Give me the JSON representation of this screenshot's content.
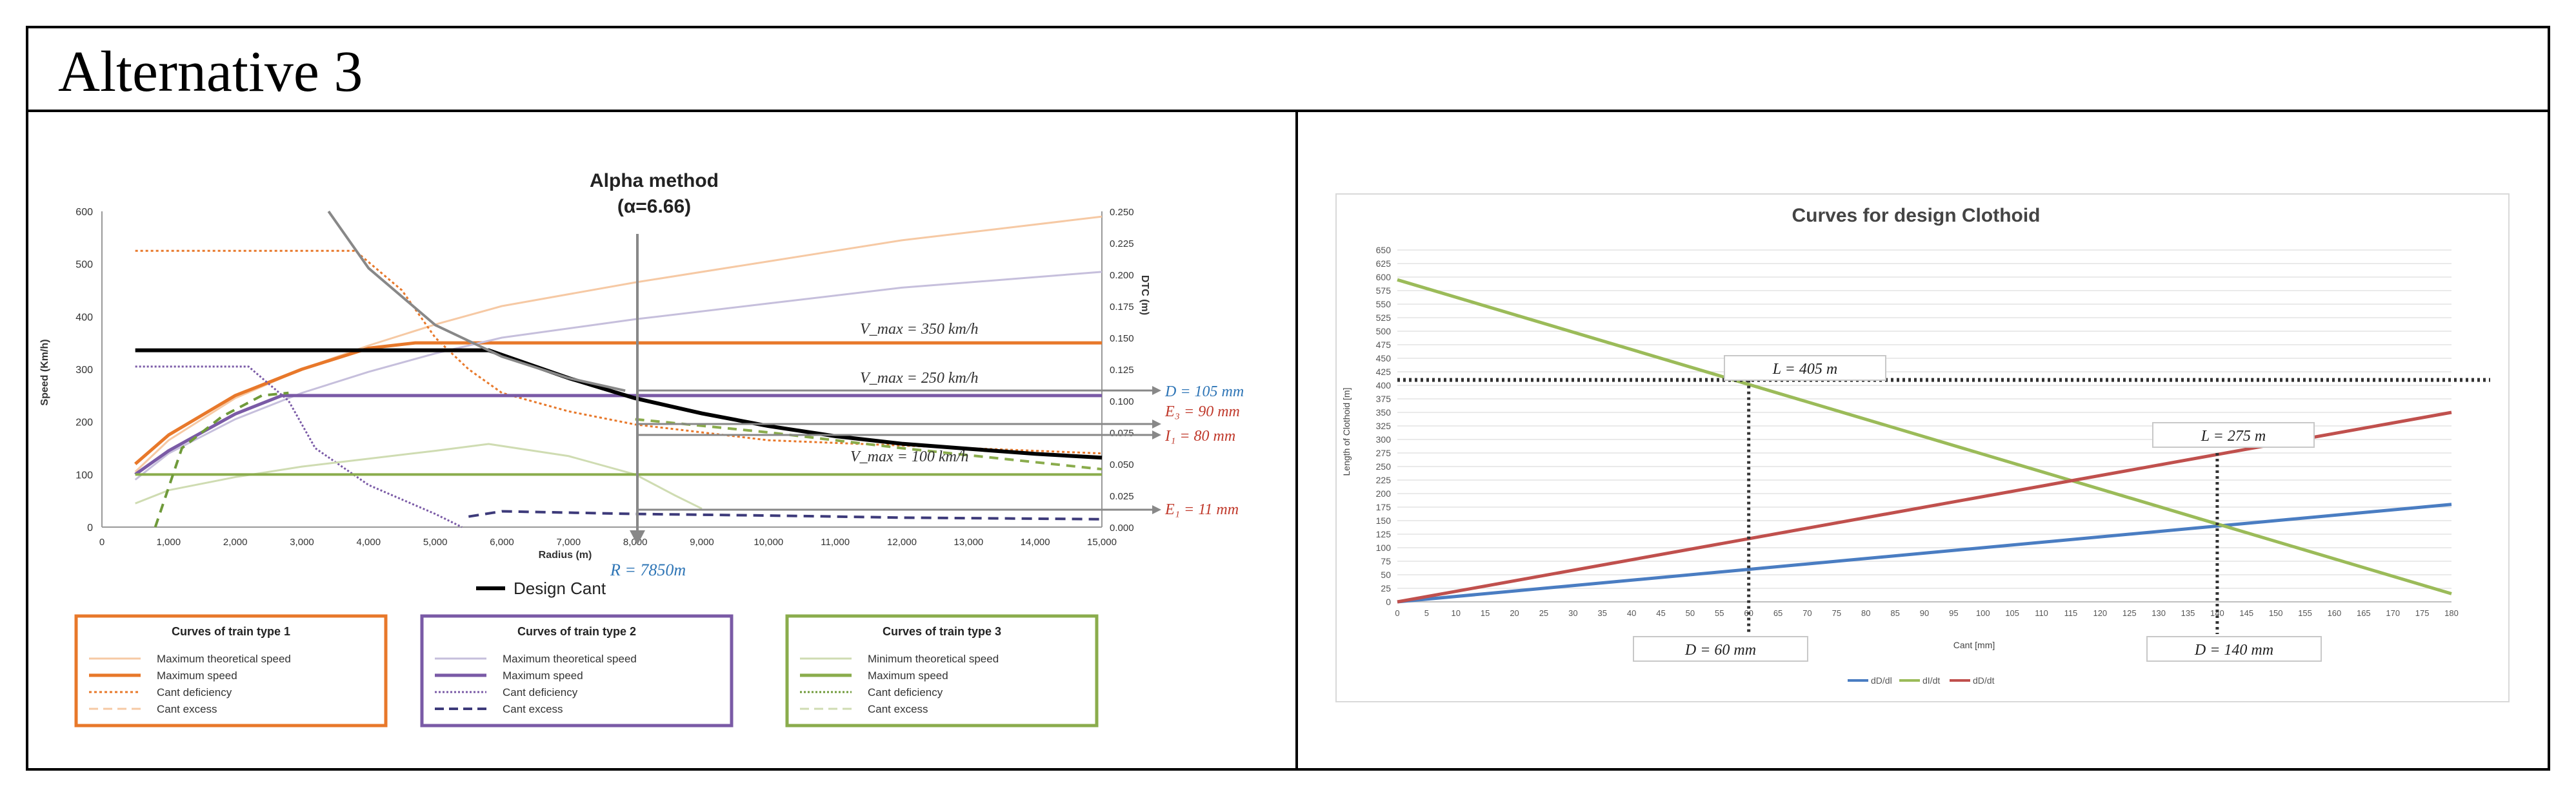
{
  "header": {
    "title": "Alternative 3"
  },
  "left_chart": {
    "title_line1": "Alpha method",
    "title_line2": "(α=6.66)",
    "xlabel": "Radius (m)",
    "ylabel_left": "Speed (Km/h)",
    "ylabel_right": "DTC (m)",
    "design_cant_label": "Design Cant",
    "radius_label": "R = 7850m",
    "annotations": {
      "vmax1": "V_max = 350 km/h",
      "vmax2": "V_max = 250 km/h",
      "vmax3": "V_max = 100 km/h",
      "D": "D = 105 mm",
      "E3": "E₃ = 90 mm",
      "I1": "I₁ = 80 mm",
      "E1": "E₁ = 11 mm"
    },
    "legend_boxes": [
      {
        "title": "Curves of train type 1",
        "items": [
          "Maximum theoretical speed",
          "Maximum speed",
          "Cant deficiency",
          "Cant excess"
        ],
        "color": "#e8782a"
      },
      {
        "title": "Curves of train type 2",
        "items": [
          "Maximum theoretical speed",
          "Maximum speed",
          "Cant deficiency",
          "Cant excess"
        ],
        "color": "#7a5aa6"
      },
      {
        "title": "Curves of  train type 3",
        "items": [
          "Minimum theoretical speed",
          "Maximum speed",
          "Cant deficiency",
          "Cant excess"
        ],
        "color": "#8aac4c"
      }
    ]
  },
  "right_chart": {
    "title": "Curves for design Clothoid",
    "ylabel": "Length of Clothoid [m]",
    "xlabel": "Cant [mm]",
    "annotations": {
      "L1": "L = 405 m",
      "L2": "L = 275 m",
      "D1": "D = 60 mm",
      "D2": "D = 140 mm"
    },
    "legend": [
      "dD/dl",
      "dI/dt",
      "dD/dt"
    ]
  },
  "chart_data": [
    {
      "type": "line",
      "title": "Alpha method (α=6.66)",
      "xlabel": "Radius (m)",
      "ylabel": "Speed (Km/h)",
      "y2label": "DTC (m)",
      "xlim": [
        0,
        15000
      ],
      "ylim": [
        0,
        600
      ],
      "y2lim": [
        0,
        0.25
      ],
      "xticks": [
        0,
        1000,
        2000,
        3000,
        4000,
        5000,
        6000,
        7000,
        8000,
        9000,
        10000,
        11000,
        12000,
        13000,
        14000,
        15000
      ],
      "xtick_labels": [
        "0",
        "1,000",
        "2,000",
        "3,000",
        "4,000",
        "5,000",
        "6,000",
        "7,000",
        "8,000",
        "9,000",
        "10,000",
        "11,000",
        "12,000",
        "13,000",
        "14,000",
        "15,000"
      ],
      "yticks": [
        0,
        100,
        200,
        300,
        400,
        500,
        600
      ],
      "y2ticks": [
        0,
        0.025,
        0.05,
        0.075,
        0.1,
        0.125,
        0.15,
        0.175,
        0.2,
        0.225,
        0.25
      ],
      "y2tick_labels": [
        "0.000",
        "0.025",
        "0.050",
        "0.075",
        "0.100",
        "0.125",
        "0.150",
        "0.175",
        "0.200",
        "0.225",
        "0.250"
      ],
      "series": [
        {
          "name": "Train 1 maximum theoretical speed",
          "axis": "y",
          "color": "#f6c9a4",
          "width": 3,
          "dash": "",
          "x": [
            500,
            1000,
            2000,
            3000,
            4000,
            5000,
            6000,
            8000,
            10000,
            12000,
            15000
          ],
          "y": [
            105,
            165,
            245,
            300,
            345,
            385,
            420,
            465,
            505,
            545,
            590
          ]
        },
        {
          "name": "Train 1 maximum speed",
          "axis": "y",
          "color": "#e8782a",
          "width": 5,
          "dash": "",
          "x": [
            500,
            1000,
            2000,
            3000,
            4000,
            4700,
            15000
          ],
          "y": [
            120,
            175,
            250,
            300,
            340,
            350,
            350
          ]
        },
        {
          "name": "Train 1 cant deficiency",
          "axis": "y",
          "color": "#e8782a",
          "width": 3,
          "dash": "4,4",
          "x": [
            500,
            3800,
            4500,
            5000,
            5500,
            6000,
            7000,
            8000,
            9000,
            10000,
            15000
          ],
          "y": [
            525,
            525,
            450,
            360,
            300,
            255,
            220,
            195,
            180,
            165,
            140
          ]
        },
        {
          "name": "Train 2 maximum theoretical speed",
          "axis": "y",
          "color": "#c6bfdc",
          "width": 3,
          "dash": "",
          "x": [
            500,
            1000,
            2000,
            3000,
            4000,
            5000,
            6000,
            8000,
            10000,
            12000,
            15000
          ],
          "y": [
            90,
            140,
            205,
            255,
            295,
            330,
            360,
            395,
            425,
            455,
            485
          ]
        },
        {
          "name": "Train 2 maximum speed",
          "axis": "y",
          "color": "#7a5aa6",
          "width": 5,
          "dash": "",
          "x": [
            500,
            1000,
            2000,
            2700,
            15000
          ],
          "y": [
            100,
            145,
            215,
            250,
            250
          ]
        },
        {
          "name": "Train 2 cant deficiency",
          "axis": "y",
          "color": "#7a5aa6",
          "width": 3,
          "dash": "3,3",
          "x": [
            500,
            2200,
            2800,
            3200,
            4000,
            5000,
            5400
          ],
          "y": [
            305,
            305,
            240,
            150,
            80,
            25,
            0
          ]
        },
        {
          "name": "Train 2 cant excess",
          "axis": "y",
          "color": "#3d3a7a",
          "width": 4,
          "dash": "16,10",
          "x": [
            5500,
            6000,
            8000,
            10000,
            12000,
            15000
          ],
          "y": [
            20,
            30,
            25,
            22,
            18,
            15
          ]
        },
        {
          "name": "Train 3 minimum theoretical speed",
          "axis": "y",
          "color": "#cfdcb2",
          "width": 3,
          "dash": "",
          "x": [
            500,
            1000,
            2000,
            3000,
            4000,
            5000,
            5800,
            7000,
            8000,
            8600,
            9000
          ],
          "y": [
            45,
            70,
            95,
            115,
            130,
            145,
            158,
            135,
            100,
            60,
            35
          ]
        },
        {
          "name": "Train 3 maximum speed",
          "axis": "y",
          "color": "#8aac4c",
          "width": 4,
          "dash": "",
          "x": [
            500,
            15000
          ],
          "y": [
            100,
            100
          ]
        },
        {
          "name": "Train 3 cant deficiency",
          "axis": "y",
          "color": "#6f9a3a",
          "width": 4,
          "dash": "14,10",
          "x": [
            800,
            1200,
            1800,
            2400,
            2800
          ],
          "y": [
            0,
            150,
            210,
            250,
            255
          ]
        },
        {
          "name": "Train 3 cant excess",
          "axis": "y",
          "color": "#8aac4c",
          "width": 4,
          "dash": "14,10",
          "x": [
            8000,
            10000,
            12000,
            15000
          ],
          "y": [
            205,
            180,
            150,
            110
          ]
        },
        {
          "name": "Design Cant",
          "axis": "y2",
          "color": "#000000",
          "width": 6,
          "dash": "",
          "x": [
            500,
            5800,
            7000,
            8000,
            9000,
            10000,
            11000,
            12000,
            13000,
            14000,
            15000
          ],
          "y": [
            0.14,
            0.14,
            0.118,
            0.102,
            0.09,
            0.08,
            0.072,
            0.066,
            0.062,
            0.058,
            0.055
          ]
        },
        {
          "name": "Design cant upper curve",
          "axis": "y2",
          "color": "#888888",
          "width": 4,
          "dash": "",
          "x": [
            3400,
            4000,
            5000,
            6000,
            7000,
            7850
          ],
          "y": [
            0.25,
            0.205,
            0.16,
            0.135,
            0.118,
            0.108
          ]
        }
      ]
    },
    {
      "type": "line",
      "title": "Curves for design Clothoid",
      "xlabel": "Cant [mm]",
      "ylabel": "Length of Clothoid [m]",
      "xlim": [
        0,
        180
      ],
      "ylim": [
        0,
        650
      ],
      "xticks": [
        0,
        5,
        10,
        15,
        20,
        25,
        30,
        35,
        40,
        45,
        50,
        55,
        60,
        65,
        70,
        75,
        80,
        85,
        90,
        95,
        100,
        105,
        110,
        115,
        120,
        125,
        130,
        135,
        140,
        145,
        150,
        155,
        160,
        165,
        170,
        175,
        180
      ],
      "yticks": [
        0,
        25,
        50,
        75,
        100,
        125,
        150,
        175,
        200,
        225,
        250,
        275,
        300,
        325,
        350,
        375,
        400,
        425,
        450,
        475,
        500,
        525,
        550,
        575,
        600,
        625,
        650
      ],
      "series": [
        {
          "name": "dD/dl",
          "color": "#4a7dc2",
          "x": [
            0,
            180
          ],
          "y": [
            0,
            180
          ]
        },
        {
          "name": "dI/dt",
          "color": "#9bbb59",
          "x": [
            0,
            180
          ],
          "y": [
            595,
            15
          ]
        },
        {
          "name": "dD/dt",
          "color": "#c0504d",
          "x": [
            0,
            180
          ],
          "y": [
            0,
            350
          ]
        }
      ],
      "reference_lines": {
        "horizontal": 410,
        "vertical": [
          60,
          140
        ]
      }
    }
  ]
}
